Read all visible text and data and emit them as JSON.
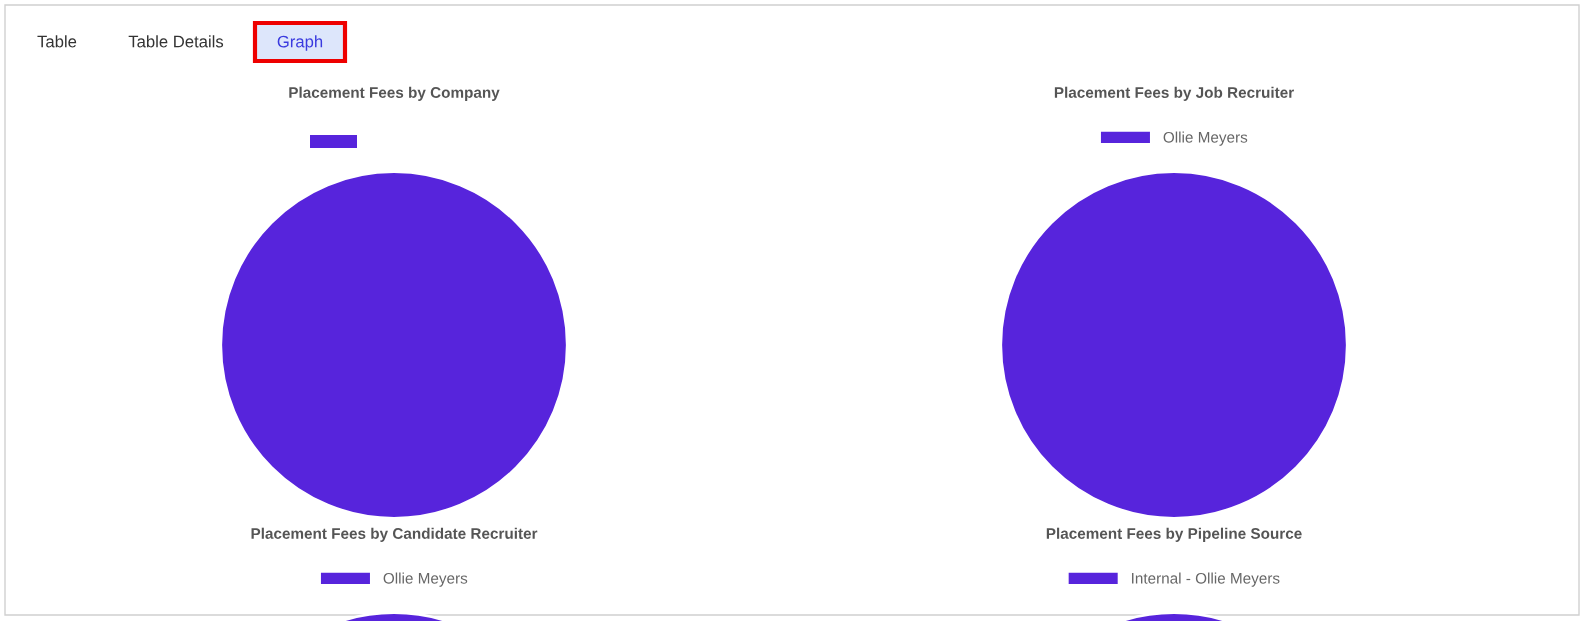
{
  "chart_data": [
    {
      "type": "other",
      "annotations": [
        "Table",
        "Table Details",
        "Graph"
      ]
    },
    {
      "type": "pie",
      "title": "Placement Fees by Company",
      "categories": [
        null
      ],
      "values": [
        100
      ],
      "colors": [
        "#5724dc"
      ]
    },
    {
      "type": "pie",
      "title": "Placement Fees by Job Recruiter",
      "categories": [
        "Ollie Meyers"
      ],
      "values": [
        100
      ],
      "colors": [
        "#5724dc"
      ],
      "legend": "top"
    },
    {
      "type": "pie",
      "title": "Placement Fees by Candidate Recruiter",
      "categories": [
        "Ollie Meyers"
      ],
      "values": [
        100
      ],
      "colors": [
        "#5724dc"
      ],
      "legend": "top"
    },
    {
      "type": "pie",
      "title": "Placement Fees by Pipeline Source",
      "categories": [
        "Internal - Ollie Meyers"
      ],
      "values": [
        100
      ],
      "colors": [
        "#5724dc"
      ],
      "legend": "top"
    }
  ]
}
